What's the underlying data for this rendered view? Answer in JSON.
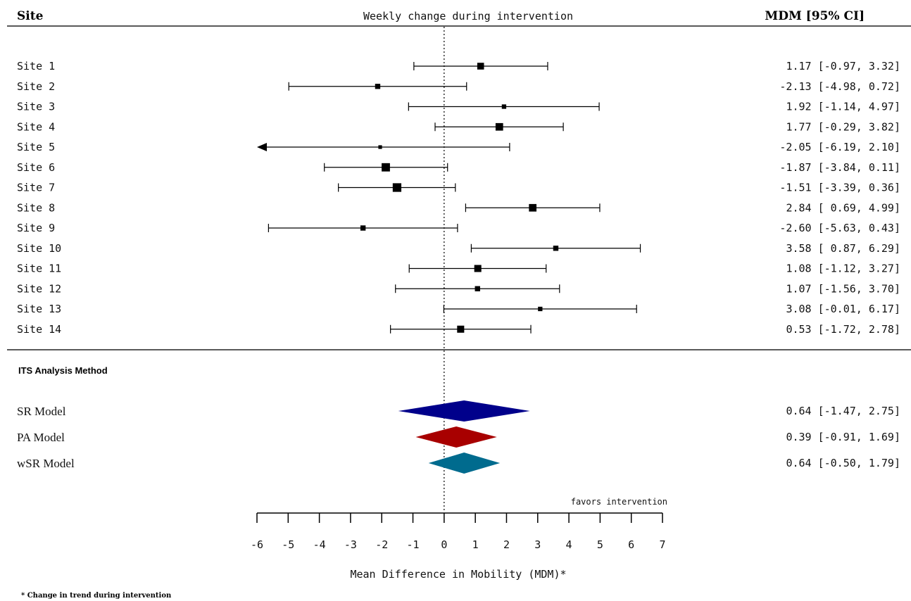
{
  "headers": {
    "site": "Site",
    "title": "Weekly change during intervention",
    "mdm": "MDM [95% CI]"
  },
  "section_label": "ITS Analysis Method",
  "footnote": "* Change in trend during intervention",
  "favors_label": "favors intervention",
  "chart_data": {
    "type": "forest",
    "xlabel": "Mean Difference in Mobility (MDM)*",
    "xlim": [
      -6,
      7
    ],
    "xticks": [
      -6,
      -5,
      -4,
      -3,
      -2,
      -1,
      0,
      1,
      2,
      3,
      4,
      5,
      6,
      7
    ],
    "reference_line": 0,
    "sites": [
      {
        "label": "Site 1",
        "mean": 1.17,
        "lower": -0.97,
        "upper": 3.32,
        "ci_text": "1.17 [-0.97, 3.32]",
        "weight": 3
      },
      {
        "label": "Site 2",
        "mean": -2.13,
        "lower": -4.98,
        "upper": 0.72,
        "ci_text": "-2.13 [-4.98, 0.72]",
        "weight": 2
      },
      {
        "label": "Site 3",
        "mean": 1.92,
        "lower": -1.14,
        "upper": 4.97,
        "ci_text": "1.92 [-1.14, 4.97]",
        "weight": 1.5
      },
      {
        "label": "Site 4",
        "mean": 1.77,
        "lower": -0.29,
        "upper": 3.82,
        "ci_text": "1.77 [-0.29, 3.82]",
        "weight": 3.5
      },
      {
        "label": "Site 5",
        "mean": -2.05,
        "lower": -6.19,
        "upper": 2.1,
        "ci_text": "-2.05 [-6.19, 2.10]",
        "weight": 1,
        "arrow_left": true
      },
      {
        "label": "Site 6",
        "mean": -1.87,
        "lower": -3.84,
        "upper": 0.11,
        "ci_text": "-1.87 [-3.84, 0.11]",
        "weight": 4
      },
      {
        "label": "Site 7",
        "mean": -1.51,
        "lower": -3.39,
        "upper": 0.36,
        "ci_text": "-1.51 [-3.39, 0.36]",
        "weight": 4.2
      },
      {
        "label": "Site 8",
        "mean": 2.84,
        "lower": 0.69,
        "upper": 4.99,
        "ci_text": "2.84 [ 0.69, 4.99]",
        "weight": 3.5
      },
      {
        "label": "Site 9",
        "mean": -2.6,
        "lower": -5.63,
        "upper": 0.43,
        "ci_text": "-2.60 [-5.63, 0.43]",
        "weight": 2
      },
      {
        "label": "Site 10",
        "mean": 3.58,
        "lower": 0.87,
        "upper": 6.29,
        "ci_text": "3.58 [ 0.87, 6.29]",
        "weight": 2
      },
      {
        "label": "Site 11",
        "mean": 1.08,
        "lower": -1.12,
        "upper": 3.27,
        "ci_text": "1.08 [-1.12, 3.27]",
        "weight": 3.2
      },
      {
        "label": "Site 12",
        "mean": 1.07,
        "lower": -1.56,
        "upper": 3.7,
        "ci_text": "1.07 [-1.56, 3.70]",
        "weight": 2
      },
      {
        "label": "Site 13",
        "mean": 3.08,
        "lower": -0.01,
        "upper": 6.17,
        "ci_text": "3.08 [-0.01, 6.17]",
        "weight": 1.5
      },
      {
        "label": "Site 14",
        "mean": 0.53,
        "lower": -1.72,
        "upper": 2.78,
        "ci_text": "0.53 [-1.72, 2.78]",
        "weight": 3.2
      }
    ],
    "models": [
      {
        "label": "SR Model",
        "mean": 0.64,
        "lower": -1.47,
        "upper": 2.75,
        "ci_text": "0.64 [-1.47, 2.75]",
        "color": "#00008b"
      },
      {
        "label": "PA Model",
        "mean": 0.39,
        "lower": -0.91,
        "upper": 1.69,
        "ci_text": "0.39 [-0.91, 1.69]",
        "color": "#a80000"
      },
      {
        "label": "wSR Model",
        "mean": 0.64,
        "lower": -0.5,
        "upper": 1.79,
        "ci_text": "0.64 [-0.50, 1.79]",
        "color": "#006b8e"
      }
    ]
  }
}
